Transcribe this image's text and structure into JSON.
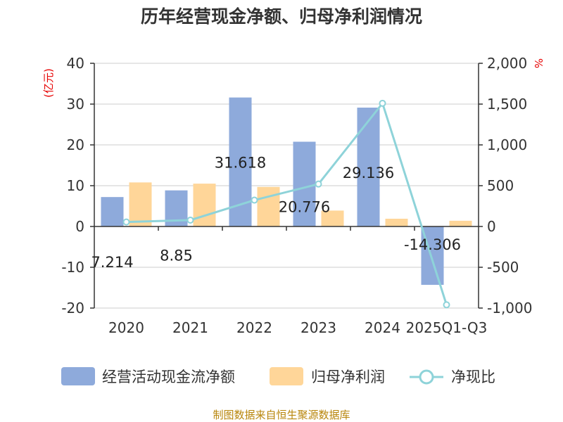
{
  "chart_data": {
    "type": "bar",
    "title": "历年经营现金净额、归母净利润情况",
    "categories": [
      "2020",
      "2021",
      "2022",
      "2023",
      "2024",
      "2025Q1-Q3"
    ],
    "left_axis": {
      "unit": "(亿元)",
      "ylim": [
        -20,
        40
      ],
      "ticks": [
        "40",
        "30",
        "20",
        "10",
        "0",
        "-10",
        "-20"
      ],
      "tick_values": [
        40,
        30,
        20,
        10,
        0,
        -10,
        -20
      ]
    },
    "right_axis": {
      "unit": "%",
      "ylim": [
        -1000,
        2000
      ],
      "ticks": [
        "2,000",
        "1,500",
        "1,000",
        "500",
        "0",
        "-500",
        "-1,000"
      ],
      "tick_values": [
        2000,
        1500,
        1000,
        500,
        0,
        -500,
        -1000
      ]
    },
    "series": [
      {
        "name": "经营活动现金流净额",
        "type": "bar",
        "axis": "left",
        "color": "#8eaadb",
        "values": [
          7.214,
          8.85,
          31.618,
          20.776,
          29.136,
          -14.306
        ],
        "labels": [
          "7.214",
          "8.85",
          "31.618",
          "20.776",
          "29.136",
          "-14.306"
        ]
      },
      {
        "name": "归母净利润",
        "type": "bar",
        "axis": "left",
        "color": "#ffd699",
        "values": [
          10.8,
          10.5,
          9.7,
          3.9,
          1.9,
          1.4
        ]
      },
      {
        "name": "净现比",
        "type": "line",
        "axis": "right",
        "color": "#8ed3d9",
        "values": [
          55,
          78,
          323,
          520,
          1510,
          -960
        ]
      }
    ],
    "grid": true,
    "legend_position": "bottom"
  },
  "source": "制图数据来自恒生聚源数据库"
}
